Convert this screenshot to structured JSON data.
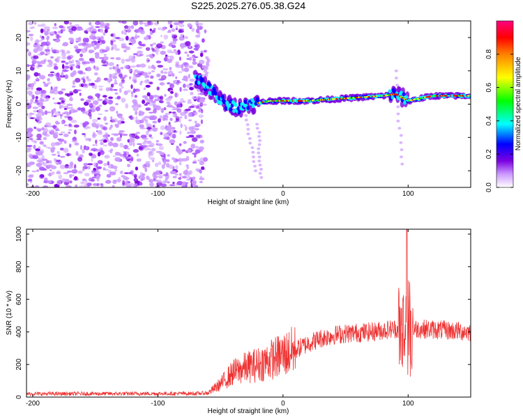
{
  "title": "S225.2025.276.05.38.G24",
  "chart_data": [
    {
      "type": "heatmap",
      "name": "spectrogram",
      "xlabel": "Height of straight line (km)",
      "ylabel": "Frequency (Hz)",
      "xlim": [
        -205,
        150
      ],
      "ylim": [
        -25,
        25
      ],
      "xticks": [
        -200,
        -100,
        0,
        100
      ],
      "yticks": [
        -20,
        -10,
        0,
        10,
        20
      ],
      "colorbar": {
        "label": "Normalized spectral amplitude",
        "range": [
          0,
          1
        ],
        "ticks": [
          "0.0",
          "0.2",
          "0.4",
          "0.6",
          "0.8"
        ],
        "colors": [
          "#ffffff",
          "#cc99ff",
          "#7a00e0",
          "#0000ff",
          "#00ffff",
          "#00ff00",
          "#ffff00",
          "#ff8000",
          "#ff0000",
          "#ff0080"
        ]
      },
      "noise_region_x": [
        -205,
        -62
      ],
      "signal_ridge": [
        {
          "x": -70,
          "y": 8
        },
        {
          "x": -60,
          "y": 5
        },
        {
          "x": -52,
          "y": 2
        },
        {
          "x": -45,
          "y": 0
        },
        {
          "x": -35,
          "y": -1
        },
        {
          "x": -25,
          "y": 0
        },
        {
          "x": -10,
          "y": 1
        },
        {
          "x": 0,
          "y": 1
        },
        {
          "x": 20,
          "y": 1
        },
        {
          "x": 40,
          "y": 1.5
        },
        {
          "x": 60,
          "y": 2
        },
        {
          "x": 80,
          "y": 2.5
        },
        {
          "x": 90,
          "y": 3
        },
        {
          "x": 100,
          "y": 1
        },
        {
          "x": 120,
          "y": 2.5
        },
        {
          "x": 150,
          "y": 2.5
        }
      ],
      "line_color": "#ff0000"
    },
    {
      "type": "line",
      "name": "snr",
      "xlabel": "Height of straight line (km)",
      "ylabel": "SNR (10 * v/v)",
      "xlim": [
        -205,
        150
      ],
      "ylim": [
        0,
        1030
      ],
      "xticks": [
        -200,
        -100,
        0,
        100
      ],
      "yticks": [
        0,
        200,
        400,
        600,
        800,
        1000
      ],
      "color": "#ee3333",
      "envelope": [
        {
          "x": -205,
          "y": 20
        },
        {
          "x": -70,
          "y": 22
        },
        {
          "x": -60,
          "y": 25
        },
        {
          "x": -50,
          "y": 80
        },
        {
          "x": -40,
          "y": 150
        },
        {
          "x": -30,
          "y": 180
        },
        {
          "x": -20,
          "y": 200
        },
        {
          "x": -10,
          "y": 230
        },
        {
          "x": 0,
          "y": 260
        },
        {
          "x": 10,
          "y": 290
        },
        {
          "x": 20,
          "y": 330
        },
        {
          "x": 30,
          "y": 360
        },
        {
          "x": 40,
          "y": 380
        },
        {
          "x": 50,
          "y": 390
        },
        {
          "x": 60,
          "y": 395
        },
        {
          "x": 70,
          "y": 400
        },
        {
          "x": 80,
          "y": 410
        },
        {
          "x": 90,
          "y": 420
        },
        {
          "x": 97,
          "y": 400
        },
        {
          "x": 105,
          "y": 420
        },
        {
          "x": 120,
          "y": 415
        },
        {
          "x": 150,
          "y": 400
        }
      ],
      "peak_x": 99,
      "peak_value": 1030
    }
  ]
}
